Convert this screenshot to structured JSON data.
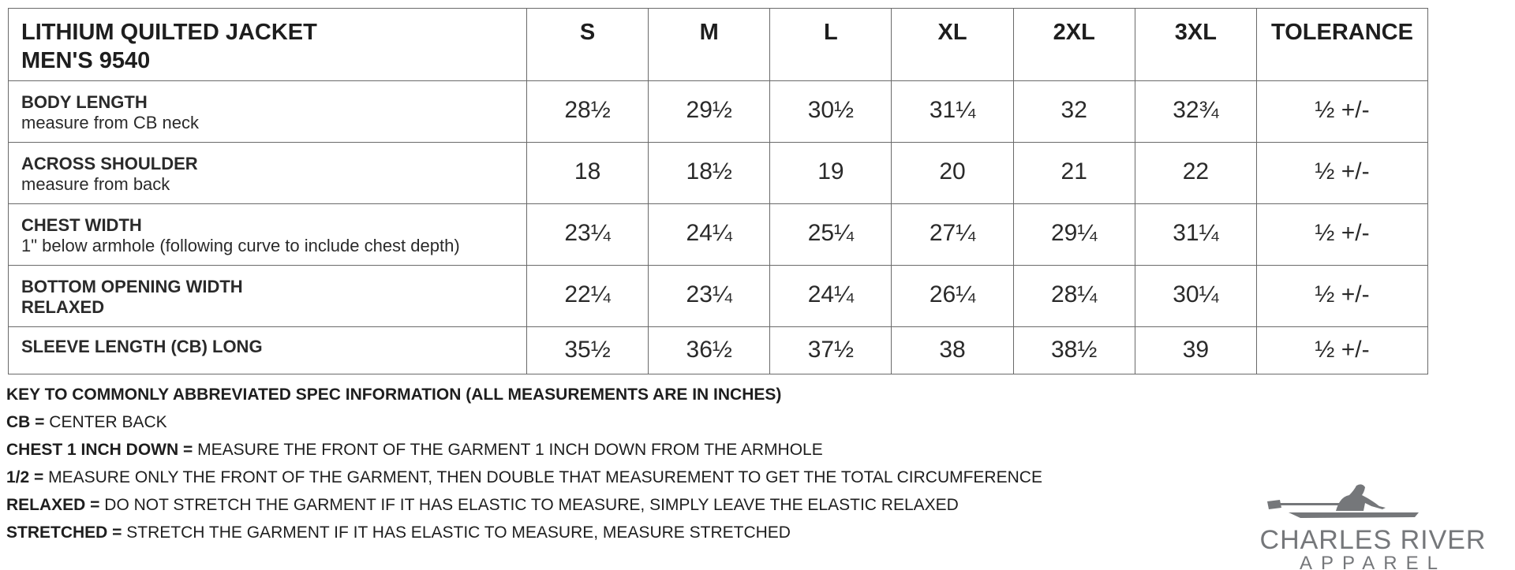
{
  "title": {
    "line1": "LITHIUM QUILTED JACKET",
    "line2": "MEN'S 9540"
  },
  "sizes": [
    "S",
    "M",
    "L",
    "XL",
    "2XL",
    "3XL"
  ],
  "tolerance_header": "TOLERANCE",
  "rows": [
    {
      "name": "BODY LENGTH",
      "sub": "measure from CB neck",
      "values": [
        "28½",
        "29½",
        "30½",
        "31¼",
        "32",
        "32¾"
      ],
      "tol": "½ +/-"
    },
    {
      "name": "ACROSS SHOULDER",
      "sub": "measure from back",
      "values": [
        "18",
        "18½",
        "19",
        "20",
        "21",
        "22"
      ],
      "tol": "½ +/-"
    },
    {
      "name": "CHEST WIDTH",
      "sub": "1\" below armhole (following curve to include chest depth)",
      "values": [
        "23¼",
        "24¼",
        "25¼",
        "27¼",
        "29¼",
        "31¼"
      ],
      "tol": "½ +/-"
    },
    {
      "name": "BOTTOM OPENING WIDTH",
      "sub": "RELAXED",
      "values": [
        "22¼",
        "23¼",
        "24¼",
        "26¼",
        "28¼",
        "30¼"
      ],
      "tol": "½ +/-"
    },
    {
      "name": "SLEEVE LENGTH (CB) LONG",
      "sub": "",
      "values": [
        "35½",
        "36½",
        "37½",
        "38",
        "38½",
        "39"
      ],
      "tol": "½ +/-"
    }
  ],
  "key": {
    "heading": "KEY TO COMMONLY ABBREVIATED SPEC INFORMATION (ALL MEASUREMENTS ARE IN INCHES)",
    "items": [
      {
        "term": "CB =",
        "def": " CENTER BACK"
      },
      {
        "term": "CHEST 1 INCH DOWN =",
        "def": " MEASURE THE FRONT OF THE GARMENT 1 INCH DOWN FROM THE ARMHOLE"
      },
      {
        "term": "1/2 =",
        "def": " MEASURE ONLY THE FRONT OF THE GARMENT, THEN DOUBLE THAT MEASUREMENT TO GET THE TOTAL CIRCUMFERENCE"
      },
      {
        "term": "RELAXED =",
        "def": " DO NOT STRETCH THE GARMENT IF IT HAS ELASTIC TO MEASURE, SIMPLY LEAVE THE ELASTIC RELAXED"
      },
      {
        "term": "STRETCHED =",
        "def": " STRETCH THE GARMENT IF IT HAS ELASTIC TO MEASURE, MEASURE STRETCHED"
      }
    ]
  },
  "logo": {
    "line1": "CHARLES RIVER",
    "line2": "APPAREL",
    "color": "#75777a"
  }
}
